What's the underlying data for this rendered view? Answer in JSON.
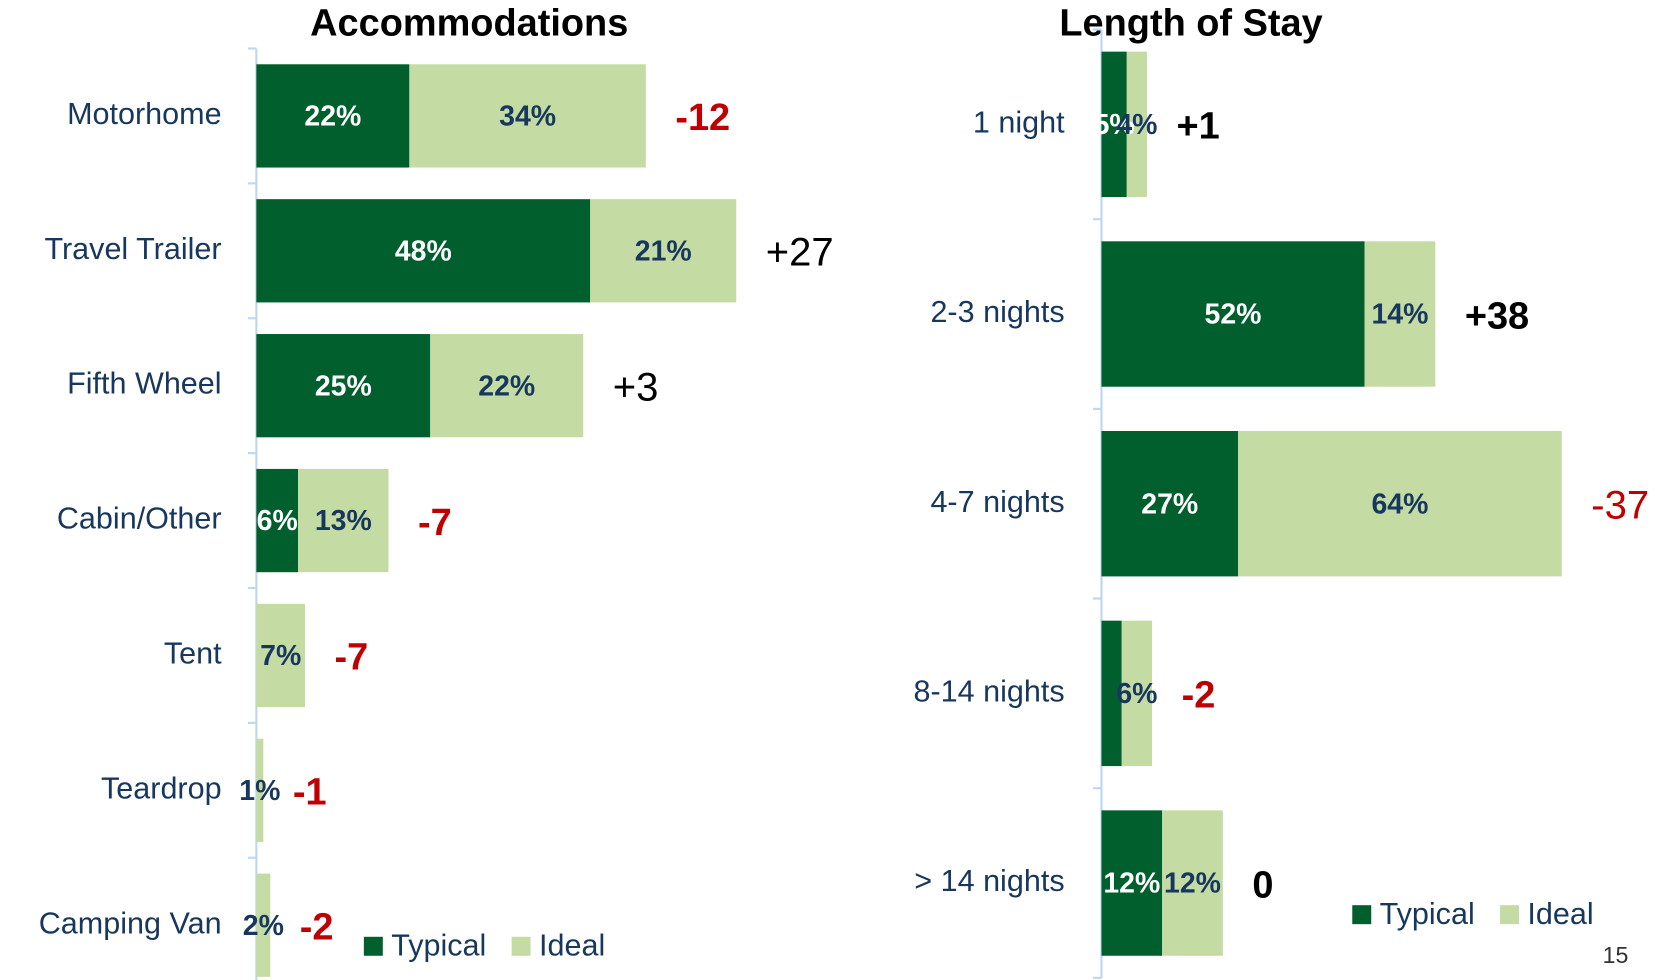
{
  "chart_data": [
    {
      "type": "bar",
      "stacked": true,
      "orientation": "horizontal",
      "title": "Accommodations",
      "categories": [
        "Motorhome",
        "Travel Trailer",
        "Fifth Wheel",
        "Cabin/Other",
        "Tent",
        "Teardrop",
        "Camping Van"
      ],
      "series": [
        {
          "name": "Typical",
          "color": "#005f2d",
          "label_color": "#ffffff",
          "values": [
            22,
            48,
            25,
            6,
            0,
            0,
            0
          ],
          "value_labels": [
            "22%",
            "48%",
            "25%",
            "6%",
            null,
            null,
            null
          ]
        },
        {
          "name": "Ideal",
          "color": "#c5dba4",
          "label_color": "#17375e",
          "values": [
            34,
            21,
            22,
            13,
            7,
            1,
            2
          ],
          "value_labels": [
            "34%",
            "21%",
            "22%",
            "13%",
            "7%",
            "1%",
            "2%"
          ]
        }
      ],
      "differences": {
        "values": [
          -12,
          27,
          3,
          -7,
          -7,
          -1,
          -2
        ],
        "value_labels": [
          "-12",
          "+27",
          "+3",
          "-7",
          "-7",
          "-1",
          "-2"
        ],
        "colors": [
          "#c00000",
          "#000000",
          "#000000",
          "#c00000",
          "#c00000",
          "#c00000",
          "#c00000"
        ],
        "bold": [
          true,
          false,
          false,
          true,
          true,
          true,
          true
        ]
      },
      "legend": "bottom-right"
    },
    {
      "type": "bar",
      "stacked": true,
      "orientation": "horizontal",
      "title": "Length of Stay",
      "categories": [
        "1 night",
        "2-3 nights",
        "4-7 nights",
        "8-14 nights",
        "> 14 nights"
      ],
      "series": [
        {
          "name": "Typical",
          "color": "#005f2d",
          "label_color": "#ffffff",
          "values": [
            5,
            52,
            27,
            4,
            12
          ],
          "value_labels": [
            "5%",
            "52%",
            "27%",
            null,
            "12%"
          ]
        },
        {
          "name": "Ideal",
          "color": "#c5dba4",
          "label_color": "#17375e",
          "values": [
            4,
            14,
            64,
            6,
            12
          ],
          "value_labels": [
            "4%",
            "14%",
            "64%",
            "6%",
            "12%"
          ]
        }
      ],
      "differences": {
        "values": [
          1,
          38,
          -37,
          -2,
          0
        ],
        "value_labels": [
          "+1",
          "+38",
          "-37",
          "-2",
          "0"
        ],
        "colors": [
          "#000000",
          "#000000",
          "#c00000",
          "#c00000",
          "#000000"
        ],
        "bold": [
          true,
          true,
          false,
          true,
          true
        ]
      },
      "legend": "bottom-right"
    }
  ],
  "page_number": "15"
}
